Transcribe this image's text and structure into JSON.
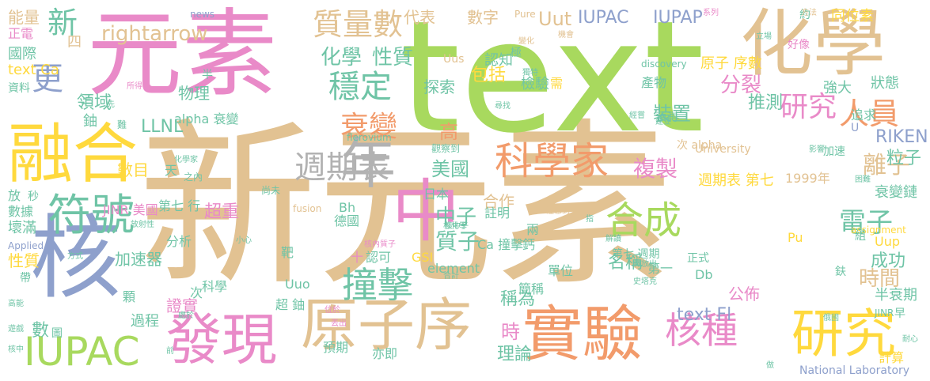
{
  "colors": {
    "tan": "#e2c292",
    "green": "#a8d95e",
    "pink": "#e98ac8",
    "orange": "#f29b6b",
    "blue": "#8ea0cc",
    "teal": "#6fc4a6",
    "yellow": "#ffd93d",
    "gray": "#b2b2b2"
  },
  "words": [
    {
      "text": "新元素",
      "color": "tan"
    },
    {
      "text": "text",
      "color": "green"
    },
    {
      "text": "元素",
      "color": "pink"
    },
    {
      "text": "化學",
      "color": "tan"
    },
    {
      "text": "融合",
      "color": "yellow"
    },
    {
      "text": "核",
      "color": "blue"
    },
    {
      "text": "中",
      "color": "pink"
    },
    {
      "text": "年",
      "color": "gray"
    },
    {
      "text": "實驗",
      "color": "orange"
    },
    {
      "text": "原子序",
      "color": "tan"
    },
    {
      "text": "發現",
      "color": "pink"
    },
    {
      "text": "研究",
      "color": "yellow"
    },
    {
      "text": "IUPAC",
      "color": "green"
    },
    {
      "text": "符號",
      "color": "teal"
    },
    {
      "text": "科學家",
      "color": "orange"
    },
    {
      "text": "合成",
      "color": "green"
    },
    {
      "text": "核種",
      "color": "pink"
    },
    {
      "text": "撞擊",
      "color": "teal"
    },
    {
      "text": "週期表",
      "color": "gray"
    },
    {
      "text": "穩定",
      "color": "teal"
    },
    {
      "text": "質量數",
      "color": "tan"
    },
    {
      "text": "研究",
      "color": "pink"
    },
    {
      "text": "人員",
      "color": "orange"
    },
    {
      "text": "衰變",
      "color": "orange"
    },
    {
      "text": "rightarrow",
      "color": "tan"
    },
    {
      "text": "Uut",
      "color": "tan"
    },
    {
      "text": "IUPAC",
      "color": "blue"
    },
    {
      "text": "IUPAP",
      "color": "blue"
    },
    {
      "text": "新",
      "color": "teal"
    },
    {
      "text": "更",
      "color": "blue"
    },
    {
      "text": "化學",
      "color": "teal"
    },
    {
      "text": "性質",
      "color": "teal"
    },
    {
      "text": "LLNL",
      "color": "teal"
    },
    {
      "text": "複製",
      "color": "pink"
    },
    {
      "text": "美國",
      "color": "teal"
    },
    {
      "text": "離子",
      "color": "tan"
    },
    {
      "text": "電子",
      "color": "teal"
    },
    {
      "text": "質子",
      "color": "teal"
    },
    {
      "text": "中子",
      "color": "teal"
    },
    {
      "text": "時間",
      "color": "tan"
    },
    {
      "text": "分裂",
      "color": "pink"
    },
    {
      "text": "領域",
      "color": "teal"
    },
    {
      "text": "能量",
      "color": "tan"
    },
    {
      "text": "物理",
      "color": "teal"
    },
    {
      "text": "RIKEN",
      "color": "blue"
    },
    {
      "text": "粒子",
      "color": "teal"
    },
    {
      "text": "裝置",
      "color": "teal"
    },
    {
      "text": "推測",
      "color": "teal"
    },
    {
      "text": "代表",
      "color": "tan"
    },
    {
      "text": "數字",
      "color": "tan"
    },
    {
      "text": "高",
      "color": "orange"
    },
    {
      "text": "同位素",
      "color": "yellow"
    },
    {
      "text": "國際",
      "color": "teal"
    },
    {
      "text": "text Ca",
      "color": "yellow"
    },
    {
      "text": "資料",
      "color": "teal"
    },
    {
      "text": "數目",
      "color": "yellow"
    },
    {
      "text": "衰變鏈",
      "color": "teal"
    },
    {
      "text": "text Fl",
      "color": "blue"
    },
    {
      "text": "名稱",
      "color": "teal"
    },
    {
      "text": "公佈",
      "color": "pink"
    },
    {
      "text": "成功",
      "color": "teal"
    },
    {
      "text": "稱為",
      "color": "teal"
    },
    {
      "text": "合作",
      "color": "tan"
    },
    {
      "text": "時",
      "color": "pink"
    },
    {
      "text": "理論",
      "color": "teal"
    },
    {
      "text": "數",
      "color": "teal"
    },
    {
      "text": "過程",
      "color": "teal"
    },
    {
      "text": "證實",
      "color": "pink"
    },
    {
      "text": "加速器",
      "color": "teal"
    },
    {
      "text": "性質",
      "color": "yellow"
    },
    {
      "text": "壞滿",
      "color": "teal"
    },
    {
      "text": "數據",
      "color": "teal"
    },
    {
      "text": "鈾",
      "color": "teal"
    },
    {
      "text": "包括",
      "color": "yellow"
    },
    {
      "text": "探索",
      "color": "teal"
    },
    {
      "text": "檢驗",
      "color": "teal"
    },
    {
      "text": "原子 序數",
      "color": "yellow"
    },
    {
      "text": "強大",
      "color": "teal"
    },
    {
      "text": "狀態",
      "color": "teal"
    },
    {
      "text": "產物",
      "color": "teal"
    },
    {
      "text": "追求",
      "color": "teal"
    },
    {
      "text": "半衰期",
      "color": "teal"
    },
    {
      "text": "alpha 衰變",
      "color": "teal"
    },
    {
      "text": "Ca 撞擊",
      "color": "teal"
    },
    {
      "text": "週期表 第七",
      "color": "yellow"
    },
    {
      "text": "1999年",
      "color": "tan"
    },
    {
      "text": "超重",
      "color": "pink"
    },
    {
      "text": "第七 行",
      "color": "teal"
    },
    {
      "text": "JINR 美國",
      "color": "pink"
    },
    {
      "text": "日本",
      "color": "teal"
    },
    {
      "text": "德國",
      "color": "teal"
    },
    {
      "text": "單位",
      "color": "teal"
    },
    {
      "text": "簡稱",
      "color": "teal"
    },
    {
      "text": "第一",
      "color": "teal"
    },
    {
      "text": "Db",
      "color": "teal"
    },
    {
      "text": "Pu",
      "color": "yellow"
    },
    {
      "text": "Uup",
      "color": "yellow"
    },
    {
      "text": "Bh",
      "color": "teal"
    },
    {
      "text": "GSI",
      "color": "yellow"
    },
    {
      "text": "element",
      "color": "teal"
    },
    {
      "text": "Uuo",
      "color": "teal"
    },
    {
      "text": "預期",
      "color": "teal"
    },
    {
      "text": "亦即",
      "color": "teal"
    },
    {
      "text": "科學",
      "color": "teal"
    },
    {
      "text": "超 鈾",
      "color": "teal"
    },
    {
      "text": "分析",
      "color": "teal"
    },
    {
      "text": "計算",
      "color": "yellow"
    },
    {
      "text": "National Laboratory",
      "color": "blue"
    },
    {
      "text": "University",
      "color": "tan"
    },
    {
      "text": "discovery",
      "color": "teal"
    },
    {
      "text": "fusion",
      "color": "tan"
    },
    {
      "text": "assignment",
      "color": "yellow"
    },
    {
      "text": "Applied",
      "color": "blue"
    },
    {
      "text": "flerovium",
      "color": "teal"
    },
    {
      "text": "Uus",
      "color": "tan"
    },
    {
      "text": "Pure",
      "color": "tan"
    },
    {
      "text": "news",
      "color": "blue"
    },
    {
      "text": "認知",
      "color": "teal"
    },
    {
      "text": "正電",
      "color": "pink"
    },
    {
      "text": "四",
      "color": "tan"
    },
    {
      "text": "三",
      "color": "teal"
    },
    {
      "text": "天",
      "color": "teal"
    },
    {
      "text": "放",
      "color": "teal"
    },
    {
      "text": "秒",
      "color": "teal"
    },
    {
      "text": "帶",
      "color": "teal"
    },
    {
      "text": "顆",
      "color": "teal"
    },
    {
      "text": "次",
      "color": "teal"
    },
    {
      "text": "次 alpha",
      "color": "tan"
    },
    {
      "text": "鈣",
      "color": "teal"
    },
    {
      "text": "兩",
      "color": "teal"
    },
    {
      "text": "靶",
      "color": "teal"
    },
    {
      "text": "認可",
      "color": "teal"
    },
    {
      "text": "十",
      "color": "pink"
    },
    {
      "text": "註明",
      "color": "teal"
    },
    {
      "text": "需",
      "color": "yellow"
    },
    {
      "text": "預測",
      "color": "teal"
    },
    {
      "text": "加速",
      "color": "teal"
    },
    {
      "text": "組",
      "color": "teal"
    },
    {
      "text": "鈇",
      "color": "teal"
    },
    {
      "text": "早",
      "color": "teal"
    },
    {
      "text": "正式",
      "color": "teal"
    },
    {
      "text": "第七 週期",
      "color": "teal"
    },
    {
      "text": "好像",
      "color": "pink"
    },
    {
      "text": "約",
      "color": "teal"
    },
    {
      "text": "半",
      "color": "teal"
    },
    {
      "text": "極",
      "color": "teal"
    },
    {
      "text": "U",
      "color": "blue"
    },
    {
      "text": "JINR",
      "color": "teal"
    },
    {
      "text": "觀察到",
      "color": "teal"
    },
    {
      "text": "難",
      "color": "teal"
    },
    {
      "text": "圖",
      "color": "teal"
    },
    {
      "text": "尚未",
      "color": "teal"
    },
    {
      "text": "之內",
      "color": "teal"
    },
    {
      "text": "化學家",
      "color": "teal"
    },
    {
      "text": "放射性",
      "color": "teal"
    },
    {
      "text": "方式",
      "color": "teal"
    },
    {
      "text": "高能",
      "color": "teal"
    },
    {
      "text": "遊戲",
      "color": "teal"
    },
    {
      "text": "核中",
      "color": "teal"
    },
    {
      "text": "變化",
      "color": "tan"
    },
    {
      "text": "方法",
      "color": "tan"
    },
    {
      "text": "系列",
      "color": "pink"
    },
    {
      "text": "立場",
      "color": "teal"
    },
    {
      "text": "機會",
      "color": "tan"
    },
    {
      "text": "獨特",
      "color": "teal"
    },
    {
      "text": "所得",
      "color": "pink"
    },
    {
      "text": "先",
      "color": "teal"
    },
    {
      "text": "尋找",
      "color": "teal"
    },
    {
      "text": "經嘗",
      "color": "teal"
    },
    {
      "text": "建立",
      "color": "teal"
    },
    {
      "text": "影響",
      "color": "teal"
    },
    {
      "text": "困難",
      "color": "teal"
    },
    {
      "text": "注意到",
      "color": "tan"
    },
    {
      "text": "指",
      "color": "teal"
    },
    {
      "text": "解讀",
      "color": "teal"
    },
    {
      "text": "釋放出",
      "color": "teal"
    },
    {
      "text": "史塔克",
      "color": "teal"
    },
    {
      "text": "俄國",
      "color": "teal"
    },
    {
      "text": "做",
      "color": "teal"
    },
    {
      "text": "耐心",
      "color": "teal"
    },
    {
      "text": "位於",
      "color": "pink"
    },
    {
      "text": "前",
      "color": "teal"
    },
    {
      "text": "處於",
      "color": "teal"
    },
    {
      "text": "丟出",
      "color": "pink"
    },
    {
      "text": "核化學",
      "color": "teal"
    },
    {
      "text": "核內質子",
      "color": "pink"
    },
    {
      "text": "小心",
      "color": "teal"
    },
    {
      "text": "合計",
      "color": "teal"
    },
    {
      "text": "核中子",
      "color": "teal"
    }
  ]
}
